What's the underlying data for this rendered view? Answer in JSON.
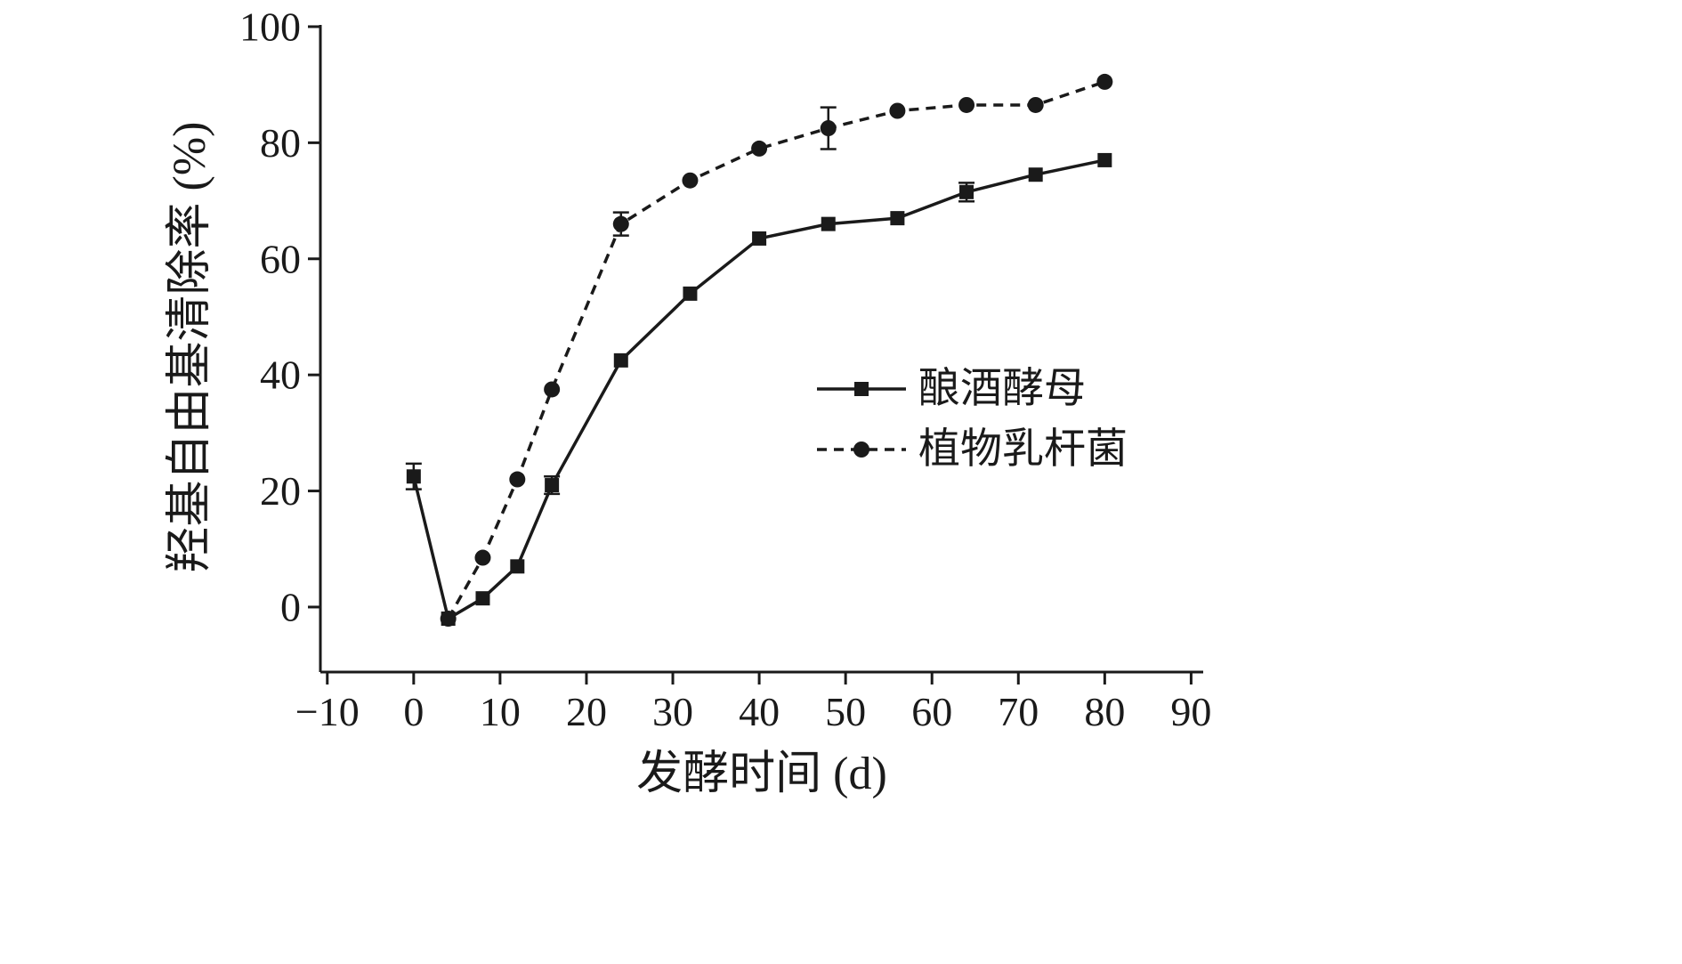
{
  "figure": {
    "background": "#ffffff",
    "ink": "#1a1a1a"
  },
  "chart_data": {
    "type": "line",
    "title": "",
    "xlabel": "发酵时间 (d)",
    "ylabel": "羟基自由基清除率 (%)",
    "xlim": [
      -10,
      90
    ],
    "ylim": [
      -10,
      100
    ],
    "xticks": [
      -10,
      0,
      10,
      20,
      30,
      40,
      50,
      60,
      70,
      80,
      90
    ],
    "yticks": [
      0,
      20,
      40,
      60,
      80,
      100
    ],
    "grid": false,
    "legend_position": "center-right",
    "series": [
      {
        "name": "酿酒酵母",
        "marker": "square",
        "line_style": "solid",
        "x": [
          0,
          4,
          8,
          12,
          16,
          24,
          32,
          40,
          48,
          56,
          64,
          72,
          80
        ],
        "values": [
          22.5,
          -2,
          1.5,
          7,
          21,
          42.5,
          54,
          63.5,
          66,
          67,
          71.5,
          74.5,
          77
        ],
        "error_bars": [
          {
            "x": 0,
            "y": 22.5,
            "err": 2.2
          },
          {
            "x": 16,
            "y": 21,
            "err": 1.5
          },
          {
            "x": 64,
            "y": 71.5,
            "err": 1.6
          }
        ]
      },
      {
        "name": "植物乳杆菌",
        "marker": "circle",
        "line_style": "dashed",
        "x": [
          4,
          8,
          12,
          16,
          24,
          32,
          40,
          48,
          56,
          64,
          72,
          80
        ],
        "values": [
          -2,
          8.5,
          22,
          37.5,
          66,
          73.5,
          79,
          82.5,
          85.5,
          86.5,
          86.5,
          90.5
        ],
        "error_bars": [
          {
            "x": 24,
            "y": 66,
            "err": 2
          },
          {
            "x": 48,
            "y": 82.5,
            "err": 3.6
          }
        ]
      }
    ]
  }
}
